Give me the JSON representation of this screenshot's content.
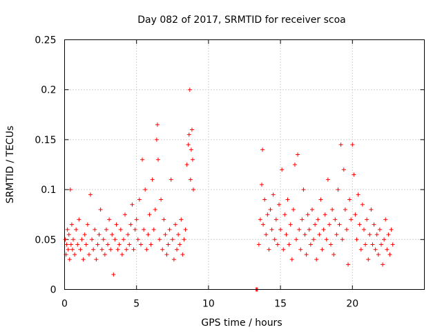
{
  "chart_data": {
    "type": "scatter",
    "title": "Day 082 of 2017, SRMTID for receiver scoa",
    "xlabel": "GPS time / hours",
    "ylabel": "SRMTID / TECUs",
    "xlim": [
      0,
      25
    ],
    "ylim": [
      0,
      0.25
    ],
    "xticks": [
      0,
      5,
      10,
      15,
      20
    ],
    "xtick_labels": [
      "0",
      "5",
      "10",
      "15",
      "20"
    ],
    "yticks": [
      0,
      0.05,
      0.1,
      0.15,
      0.2,
      0.25
    ],
    "ytick_labels": [
      "0",
      "0.05",
      "0.1",
      "0.15",
      "0.2",
      "0.25"
    ],
    "grid": true,
    "marker": "plus",
    "series": [
      {
        "name": "SRMTID",
        "color": "#ff0000",
        "points": [
          [
            0.05,
            0.05
          ],
          [
            0.1,
            0.035
          ],
          [
            0.15,
            0.045
          ],
          [
            0.2,
            0.06
          ],
          [
            0.25,
            0.04
          ],
          [
            0.3,
            0.055
          ],
          [
            0.35,
            0.03
          ],
          [
            0.4,
            0.1
          ],
          [
            0.45,
            0.045
          ],
          [
            0.5,
            0.065
          ],
          [
            0.55,
            0.04
          ],
          [
            0.6,
            0.05
          ],
          [
            0.7,
            0.035
          ],
          [
            0.8,
            0.06
          ],
          [
            0.9,
            0.045
          ],
          [
            1.0,
            0.07
          ],
          [
            1.1,
            0.04
          ],
          [
            1.2,
            0.05
          ],
          [
            1.3,
            0.03
          ],
          [
            1.4,
            0.055
          ],
          [
            1.5,
            0.045
          ],
          [
            1.6,
            0.065
          ],
          [
            1.7,
            0.035
          ],
          [
            1.8,
            0.095
          ],
          [
            1.9,
            0.05
          ],
          [
            2.0,
            0.04
          ],
          [
            2.1,
            0.06
          ],
          [
            2.2,
            0.03
          ],
          [
            2.3,
            0.045
          ],
          [
            2.4,
            0.055
          ],
          [
            2.5,
            0.08
          ],
          [
            2.6,
            0.04
          ],
          [
            2.7,
            0.05
          ],
          [
            2.8,
            0.035
          ],
          [
            2.9,
            0.06
          ],
          [
            3.0,
            0.045
          ],
          [
            3.1,
            0.07
          ],
          [
            3.2,
            0.04
          ],
          [
            3.3,
            0.055
          ],
          [
            3.4,
            0.015
          ],
          [
            3.5,
            0.05
          ],
          [
            3.6,
            0.065
          ],
          [
            3.7,
            0.04
          ],
          [
            3.8,
            0.045
          ],
          [
            3.9,
            0.06
          ],
          [
            4.0,
            0.035
          ],
          [
            4.1,
            0.05
          ],
          [
            4.2,
            0.075
          ],
          [
            4.3,
            0.04
          ],
          [
            4.4,
            0.055
          ],
          [
            4.5,
            0.045
          ],
          [
            4.6,
            0.065
          ],
          [
            4.7,
            0.085
          ],
          [
            4.8,
            0.04
          ],
          [
            4.9,
            0.06
          ],
          [
            5.0,
            0.07
          ],
          [
            5.1,
            0.05
          ],
          [
            5.2,
            0.09
          ],
          [
            5.3,
            0.045
          ],
          [
            5.4,
            0.13
          ],
          [
            5.5,
            0.06
          ],
          [
            5.6,
            0.1
          ],
          [
            5.7,
            0.04
          ],
          [
            5.8,
            0.055
          ],
          [
            5.9,
            0.075
          ],
          [
            6.0,
            0.045
          ],
          [
            6.1,
            0.11
          ],
          [
            6.2,
            0.06
          ],
          [
            6.3,
            0.08
          ],
          [
            6.4,
            0.15
          ],
          [
            6.45,
            0.165
          ],
          [
            6.5,
            0.13
          ],
          [
            6.6,
            0.05
          ],
          [
            6.7,
            0.09
          ],
          [
            6.8,
            0.04
          ],
          [
            6.9,
            0.07
          ],
          [
            7.0,
            0.055
          ],
          [
            7.1,
            0.035
          ],
          [
            7.2,
            0.045
          ],
          [
            7.3,
            0.06
          ],
          [
            7.4,
            0.11
          ],
          [
            7.5,
            0.05
          ],
          [
            7.6,
            0.03
          ],
          [
            7.7,
            0.065
          ],
          [
            7.8,
            0.04
          ],
          [
            7.9,
            0.055
          ],
          [
            8.0,
            0.045
          ],
          [
            8.1,
            0.07
          ],
          [
            8.2,
            0.035
          ],
          [
            8.3,
            0.05
          ],
          [
            8.4,
            0.06
          ],
          [
            8.5,
            0.125
          ],
          [
            8.6,
            0.145
          ],
          [
            8.65,
            0.155
          ],
          [
            8.7,
            0.2
          ],
          [
            8.75,
            0.11
          ],
          [
            8.8,
            0.14
          ],
          [
            8.85,
            0.16
          ],
          [
            8.9,
            0.13
          ],
          [
            8.95,
            0.1
          ],
          [
            13.3,
            0.0
          ],
          [
            13.35,
            0.0
          ],
          [
            13.4,
            0.0
          ],
          [
            13.5,
            0.045
          ],
          [
            13.6,
            0.07
          ],
          [
            13.7,
            0.105
          ],
          [
            13.75,
            0.14
          ],
          [
            13.8,
            0.065
          ],
          [
            13.9,
            0.09
          ],
          [
            14.0,
            0.055
          ],
          [
            14.1,
            0.075
          ],
          [
            14.2,
            0.04
          ],
          [
            14.3,
            0.08
          ],
          [
            14.4,
            0.06
          ],
          [
            14.5,
            0.095
          ],
          [
            14.6,
            0.05
          ],
          [
            14.7,
            0.07
          ],
          [
            14.8,
            0.045
          ],
          [
            14.9,
            0.085
          ],
          [
            15.0,
            0.06
          ],
          [
            15.1,
            0.12
          ],
          [
            15.2,
            0.04
          ],
          [
            15.3,
            0.075
          ],
          [
            15.4,
            0.055
          ],
          [
            15.5,
            0.09
          ],
          [
            15.6,
            0.045
          ],
          [
            15.7,
            0.065
          ],
          [
            15.8,
            0.03
          ],
          [
            15.9,
            0.08
          ],
          [
            16.0,
            0.125
          ],
          [
            16.1,
            0.05
          ],
          [
            16.2,
            0.135
          ],
          [
            16.3,
            0.06
          ],
          [
            16.4,
            0.04
          ],
          [
            16.5,
            0.07
          ],
          [
            16.6,
            0.1
          ],
          [
            16.7,
            0.055
          ],
          [
            16.8,
            0.035
          ],
          [
            16.9,
            0.075
          ],
          [
            17.0,
            0.06
          ],
          [
            17.1,
            0.045
          ],
          [
            17.2,
            0.08
          ],
          [
            17.3,
            0.05
          ],
          [
            17.4,
            0.065
          ],
          [
            17.5,
            0.03
          ],
          [
            17.6,
            0.07
          ],
          [
            17.7,
            0.055
          ],
          [
            17.8,
            0.09
          ],
          [
            17.9,
            0.04
          ],
          [
            18.0,
            0.06
          ],
          [
            18.1,
            0.075
          ],
          [
            18.2,
            0.05
          ],
          [
            18.3,
            0.11
          ],
          [
            18.4,
            0.065
          ],
          [
            18.5,
            0.045
          ],
          [
            18.6,
            0.08
          ],
          [
            18.7,
            0.035
          ],
          [
            18.8,
            0.07
          ],
          [
            18.9,
            0.055
          ],
          [
            19.0,
            0.1
          ],
          [
            19.1,
            0.065
          ],
          [
            19.2,
            0.145
          ],
          [
            19.3,
            0.05
          ],
          [
            19.4,
            0.12
          ],
          [
            19.5,
            0.08
          ],
          [
            19.6,
            0.06
          ],
          [
            19.7,
            0.025
          ],
          [
            19.8,
            0.09
          ],
          [
            19.9,
            0.07
          ],
          [
            20.0,
            0.145
          ],
          [
            20.1,
            0.115
          ],
          [
            20.2,
            0.075
          ],
          [
            20.3,
            0.05
          ],
          [
            20.4,
            0.095
          ],
          [
            20.5,
            0.065
          ],
          [
            20.6,
            0.04
          ],
          [
            20.7,
            0.085
          ],
          [
            20.8,
            0.06
          ],
          [
            20.9,
            0.045
          ],
          [
            21.0,
            0.07
          ],
          [
            21.1,
            0.03
          ],
          [
            21.2,
            0.055
          ],
          [
            21.3,
            0.08
          ],
          [
            21.4,
            0.045
          ],
          [
            21.5,
            0.065
          ],
          [
            21.6,
            0.04
          ],
          [
            21.7,
            0.055
          ],
          [
            21.8,
            0.035
          ],
          [
            21.9,
            0.06
          ],
          [
            22.0,
            0.045
          ],
          [
            22.1,
            0.025
          ],
          [
            22.2,
            0.05
          ],
          [
            22.3,
            0.07
          ],
          [
            22.4,
            0.04
          ],
          [
            22.5,
            0.055
          ],
          [
            22.6,
            0.035
          ],
          [
            22.7,
            0.06
          ],
          [
            22.8,
            0.045
          ]
        ]
      }
    ]
  }
}
